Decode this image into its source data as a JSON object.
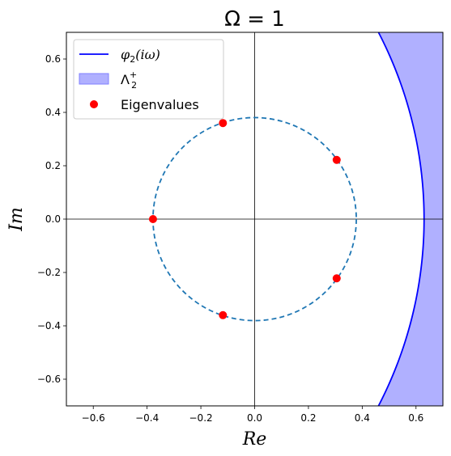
{
  "chart_data": {
    "type": "scatter",
    "title": "Ω = 1",
    "xlabel": "Re",
    "ylabel": "Im",
    "xlim": [
      -0.7,
      0.7
    ],
    "ylim": [
      -0.7,
      0.7
    ],
    "xticks": [
      -0.6,
      -0.4,
      -0.2,
      0.0,
      0.2,
      0.4,
      0.6
    ],
    "yticks": [
      -0.6,
      -0.4,
      -0.2,
      0.0,
      0.2,
      0.4,
      0.6
    ],
    "xtick_labels": [
      "−0.6",
      "−0.4",
      "−0.2",
      "0.0",
      "0.2",
      "0.4",
      "0.6"
    ],
    "ytick_labels": [
      "−0.6",
      "−0.4",
      "−0.2",
      "0.0",
      "0.2",
      "0.4",
      "0.6"
    ],
    "grid": false,
    "legend_position": "top-left",
    "reference_lines": {
      "x": 0,
      "y": 0
    },
    "dashed_circle": {
      "center": [
        0,
        0
      ],
      "radius": 0.378,
      "color": "#1f77b4"
    },
    "boundary_curve": {
      "name": "φ2(iω)",
      "type": "circle-arc",
      "center": [
        -0.9,
        0
      ],
      "radius": 1.53,
      "color": "#0000ff"
    },
    "shaded_region": {
      "name": "Λ2+",
      "color": "#b0b0ff",
      "edge_color": "#8080ff"
    },
    "eigenvalues": {
      "name": "Eigenvalues",
      "color": "#ff0000",
      "points": [
        {
          "x": -0.118,
          "y": 0.36
        },
        {
          "x": 0.305,
          "y": 0.222
        },
        {
          "x": -0.378,
          "y": 0.0
        },
        {
          "x": 0.305,
          "y": -0.222
        },
        {
          "x": -0.118,
          "y": -0.36
        }
      ]
    },
    "legend": [
      {
        "label_base": "φ",
        "label_sub": "2",
        "label_rest": "(iω)"
      },
      {
        "label_base": "Λ",
        "label_sup": "+",
        "label_sub": "2"
      },
      {
        "label": "Eigenvalues"
      }
    ]
  }
}
